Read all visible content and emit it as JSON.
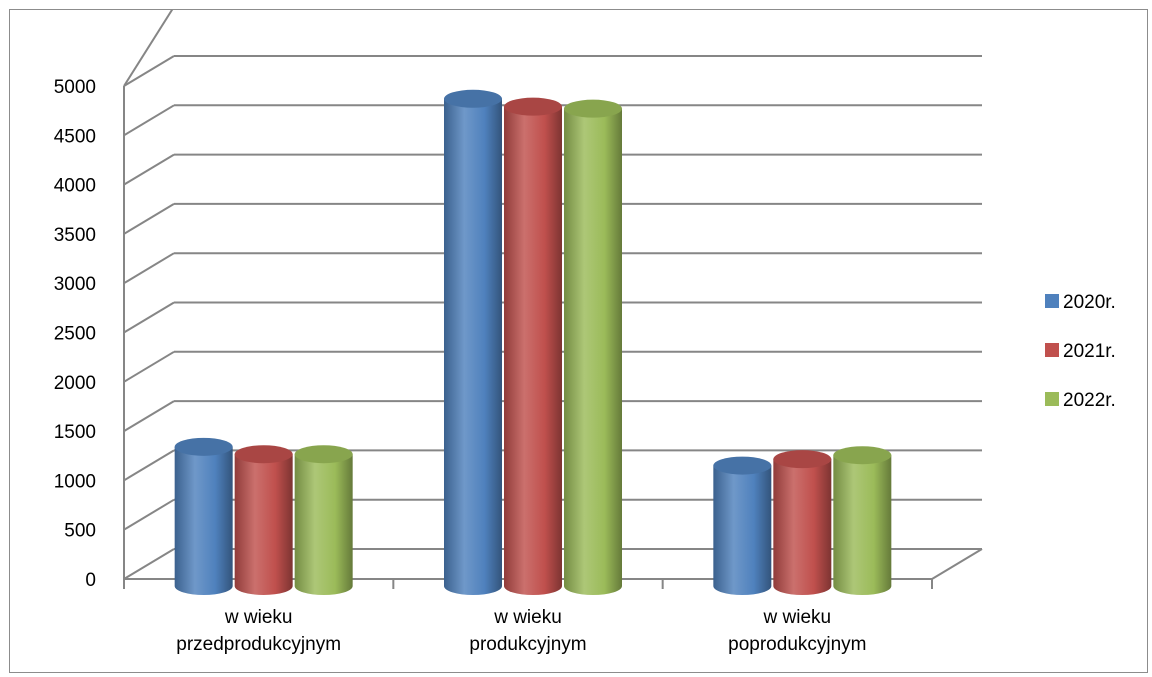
{
  "chart_data": {
    "type": "bar",
    "categories": [
      [
        "w wieku",
        "przedprodukcyjnym"
      ],
      [
        "w wieku",
        "produkcyjnym"
      ],
      [
        "w wieku",
        "poprodukcyjnym"
      ]
    ],
    "series": [
      {
        "name": "2020r.",
        "color": "#4f81bd",
        "values": [
          1310,
          4840,
          1120
        ]
      },
      {
        "name": "2021r.",
        "color": "#c0504d",
        "values": [
          1235,
          4760,
          1185
        ]
      },
      {
        "name": "2022r.",
        "color": "#9bbb59",
        "values": [
          1235,
          4740,
          1225
        ]
      }
    ],
    "y_ticks": [
      "0",
      "500",
      "1000",
      "1500",
      "2000",
      "2500",
      "3000",
      "3500",
      "4000",
      "4500",
      "5000"
    ],
    "ylim": [
      0,
      5000
    ],
    "grid": true,
    "legend_position": "right",
    "style": "3d-cylinder"
  }
}
